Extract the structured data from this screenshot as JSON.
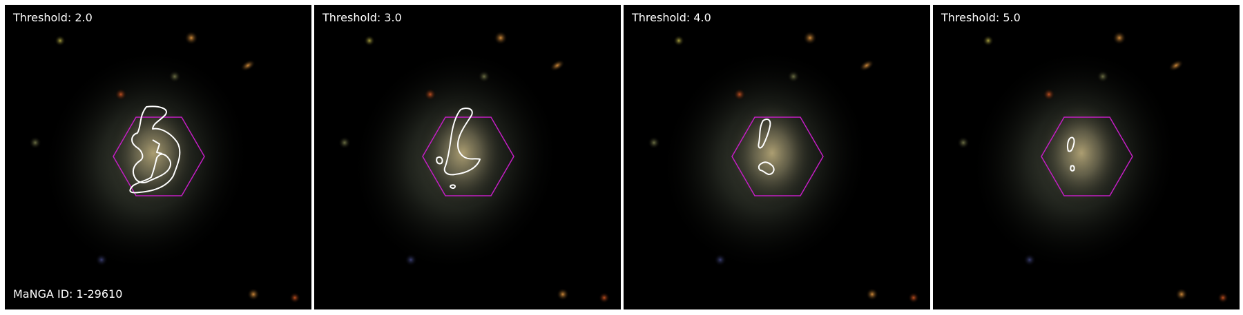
{
  "panels": [
    {
      "threshold_label": "Threshold: 2.0"
    },
    {
      "threshold_label": "Threshold: 3.0"
    },
    {
      "threshold_label": "Threshold: 4.0"
    },
    {
      "threshold_label": "Threshold: 5.0"
    }
  ],
  "manga_id_label": "MaNGA ID: 1-29610",
  "colors": {
    "background": "#000000",
    "hexagon": "#c41ec4",
    "contour": "#ffffff"
  }
}
